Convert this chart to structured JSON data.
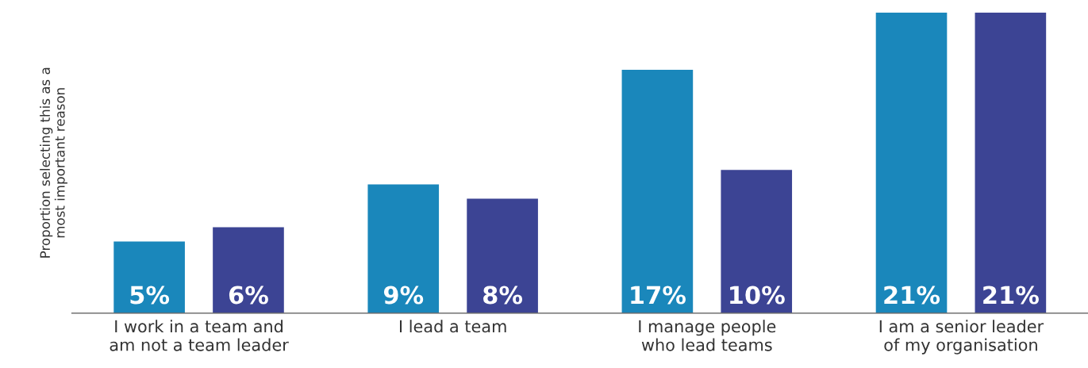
{
  "chart_data": {
    "type": "bar",
    "ylabel": "Proportion selecting this as a\nmost important reason",
    "categories": [
      "I work in a team and\nam not a team leader",
      "I lead a team",
      "I manage people\nwho lead teams",
      "I am a senior leader\nof my organisation"
    ],
    "series": [
      {
        "color": "#1a87bb",
        "values": [
          5,
          9,
          17,
          21
        ],
        "value_labels": [
          "5%",
          "9%",
          "17%",
          "21%"
        ]
      },
      {
        "color": "#3c4494",
        "values": [
          6,
          8,
          10,
          21
        ],
        "value_labels": [
          "6%",
          "8%",
          "10%",
          "21%"
        ]
      }
    ],
    "ylim": [
      0,
      21
    ],
    "tick_labels": "x",
    "grid": false,
    "legend": false
  }
}
